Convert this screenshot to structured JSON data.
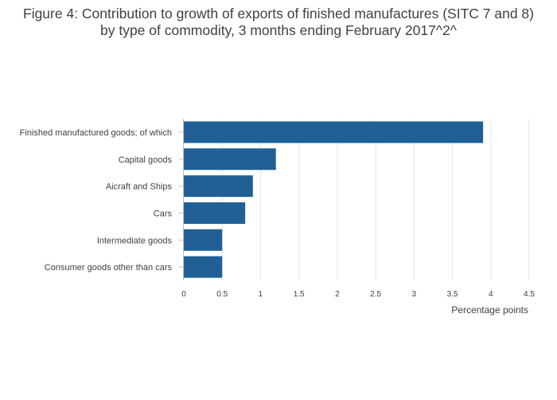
{
  "chart_data": {
    "type": "bar",
    "orientation": "horizontal",
    "title": "Figure 4: Contribution to growth of exports of finished manufactures (SITC 7 and 8) by type of commodity, 3 months ending February 2017^2^",
    "categories": [
      "Finished manufactured goods; of which",
      "Capital goods",
      "Aicraft and Ships",
      "Cars",
      "Intermediate goods",
      "Consumer goods other than cars"
    ],
    "values": [
      3.9,
      1.2,
      0.9,
      0.8,
      0.5,
      0.5
    ],
    "xlabel": "Percentage points",
    "ylabel": "",
    "xlim": [
      0,
      4.5
    ],
    "xticks": [
      "0",
      "0.5",
      "1",
      "1.5",
      "2",
      "2.5",
      "3",
      "3.5",
      "4",
      "4.5"
    ],
    "grid": "vertical",
    "legend": "none",
    "bar_color": "#206095",
    "grid_color": "#e6e6e6",
    "axis_color": "#bebebe"
  }
}
